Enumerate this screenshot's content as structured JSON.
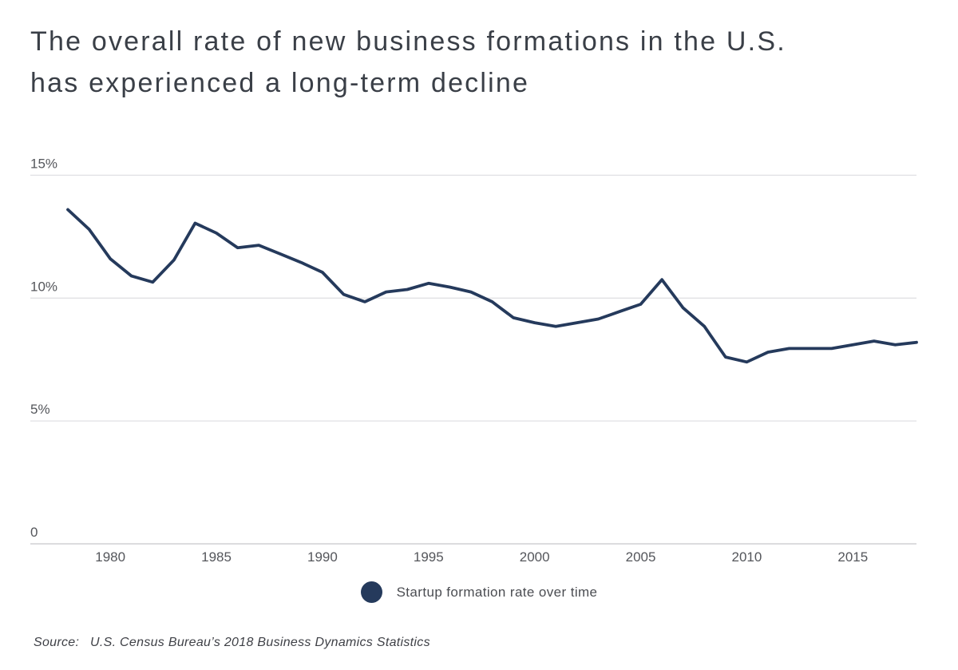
{
  "title": {
    "line1": "The overall rate of new business formations in the U.S.",
    "line2": "has experienced a long-term decline"
  },
  "legend": {
    "label": "Startup formation rate over time"
  },
  "source": {
    "prefix": "Source:",
    "text": "U.S. Census Bureau’s 2018 Business Dynamics Statistics"
  },
  "colors": {
    "line": "#253a5c",
    "legend_dot": "#253a5c",
    "title_text": "#3a3f47",
    "axis_label": "#54565b",
    "gridline": "#e1e1e4",
    "zero_line": "#c6c7c9",
    "background": "#ffffff"
  },
  "chart_data": {
    "type": "line",
    "title": "The overall rate of new business formations in the U.S. has experienced a long-term decline",
    "xlabel": "",
    "ylabel": "",
    "xlim": [
      1978,
      2019
    ],
    "ylim": [
      0,
      16.5
    ],
    "grid": "horizontal",
    "legend_position": "bottom",
    "x_ticks": [
      1980,
      1985,
      1990,
      1995,
      2000,
      2005,
      2010,
      2015
    ],
    "y_ticks": [
      {
        "value": 0,
        "label": "0"
      },
      {
        "value": 5,
        "label": "5%"
      },
      {
        "value": 10,
        "label": "10%"
      },
      {
        "value": 15,
        "label": "15%"
      }
    ],
    "series": [
      {
        "name": "Startup formation rate over time",
        "color": "#253a5c",
        "x": [
          1978,
          1979,
          1980,
          1981,
          1982,
          1983,
          1984,
          1985,
          1986,
          1987,
          1988,
          1989,
          1990,
          1991,
          1992,
          1993,
          1994,
          1995,
          1996,
          1997,
          1998,
          1999,
          2000,
          2001,
          2002,
          2003,
          2004,
          2005,
          2006,
          2007,
          2008,
          2009,
          2010,
          2011,
          2012,
          2013,
          2014,
          2015,
          2016,
          2017,
          2018
        ],
        "values": [
          13.6,
          12.8,
          11.6,
          10.9,
          10.65,
          11.55,
          13.05,
          12.65,
          12.05,
          12.15,
          11.8,
          11.45,
          11.05,
          10.15,
          9.85,
          10.25,
          10.35,
          10.6,
          10.45,
          10.25,
          9.85,
          9.2,
          9.0,
          8.85,
          9.0,
          9.15,
          9.45,
          9.75,
          10.75,
          9.6,
          8.85,
          7.6,
          7.4,
          7.8,
          7.95,
          7.95,
          7.95,
          8.1,
          8.25,
          8.1,
          8.2
        ]
      }
    ]
  }
}
